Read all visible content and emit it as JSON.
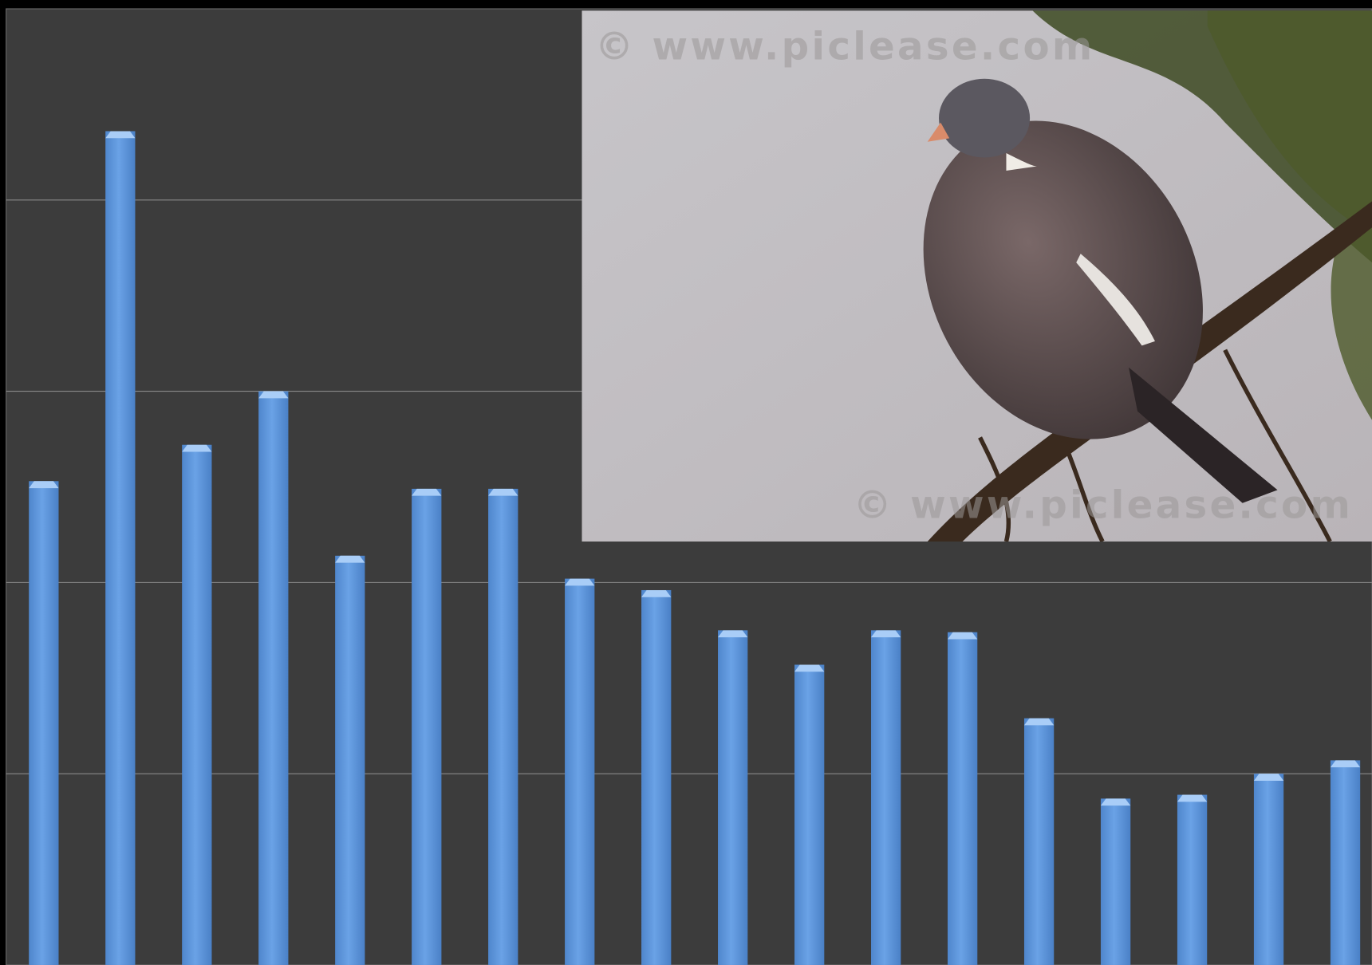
{
  "chart_data": {
    "type": "bar",
    "categories": [
      null,
      null,
      null,
      null,
      null,
      null,
      null,
      null,
      null,
      null,
      null,
      null,
      null,
      null,
      null,
      null,
      null,
      null
    ],
    "values": [
      2.53,
      4.36,
      2.72,
      3.0,
      2.14,
      2.49,
      2.49,
      2.02,
      1.96,
      1.75,
      1.57,
      1.75,
      1.74,
      1.29,
      0.87,
      0.89,
      1.0,
      1.07
    ],
    "color": "#5b94dc",
    "ylim": [
      0,
      5
    ],
    "yticks": [
      1,
      2,
      3,
      4
    ],
    "grid": true,
    "annotations": [
      "© www.piclease.com",
      "© www.piclease.com"
    ]
  }
}
